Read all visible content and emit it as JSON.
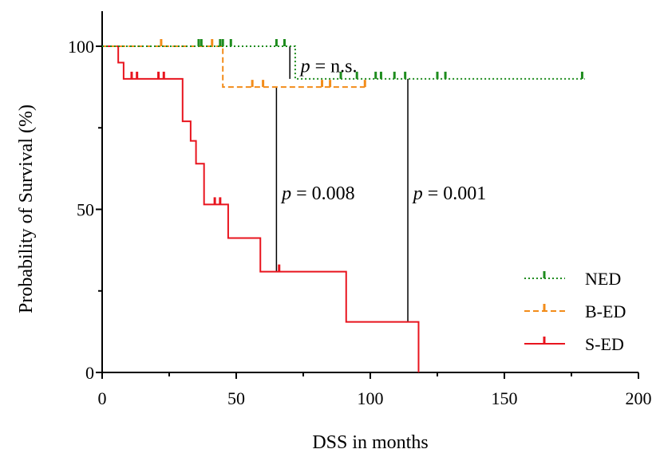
{
  "chart_data": {
    "type": "line",
    "subtype": "kaplan-meier step",
    "xlabel": "DSS in months",
    "ylabel": "Probability of Survival (%)",
    "xlim": [
      0,
      200
    ],
    "ylim": [
      0,
      100
    ],
    "xticks": [
      "0",
      "50",
      "100",
      "150",
      "200"
    ],
    "yticks": [
      "0",
      "50",
      "100"
    ],
    "grid": false,
    "legend_position": "bottom-right",
    "series": [
      {
        "name": "NED",
        "color": "#1e8c1e",
        "line_style": "dotted",
        "steps": [
          [
            0,
            100
          ],
          [
            72,
            100
          ],
          [
            72,
            90
          ],
          [
            180,
            90
          ]
        ],
        "censored": [
          [
            36,
            100
          ],
          [
            37,
            100
          ],
          [
            44,
            100
          ],
          [
            45,
            100
          ],
          [
            48,
            100
          ],
          [
            65,
            100
          ],
          [
            68,
            100
          ],
          [
            89,
            90
          ],
          [
            95,
            90
          ],
          [
            102,
            90
          ],
          [
            104,
            90
          ],
          [
            109,
            90
          ],
          [
            113,
            90
          ],
          [
            125,
            90
          ],
          [
            128,
            90
          ],
          [
            179,
            90
          ]
        ]
      },
      {
        "name": "B-ED",
        "color": "#f28c1a",
        "line_style": "dashed",
        "steps": [
          [
            0,
            100
          ],
          [
            45,
            100
          ],
          [
            45,
            87.5
          ],
          [
            98,
            87.5
          ]
        ],
        "censored": [
          [
            22,
            100
          ],
          [
            41,
            100
          ],
          [
            56,
            87.5
          ],
          [
            60,
            87.5
          ],
          [
            82,
            87.5
          ],
          [
            85,
            87.5
          ],
          [
            98,
            87.5
          ]
        ]
      },
      {
        "name": "S-ED",
        "color": "#e8141e",
        "line_style": "solid",
        "steps": [
          [
            0,
            100
          ],
          [
            6,
            100
          ],
          [
            6,
            95
          ],
          [
            8,
            95
          ],
          [
            8,
            90
          ],
          [
            30,
            90
          ],
          [
            30,
            77
          ],
          [
            33,
            77
          ],
          [
            33,
            71
          ],
          [
            35,
            71
          ],
          [
            35,
            64
          ],
          [
            38,
            64
          ],
          [
            38,
            51.5
          ],
          [
            47,
            51.5
          ],
          [
            47,
            41.2
          ],
          [
            59,
            41.2
          ],
          [
            59,
            30.9
          ],
          [
            91,
            30.9
          ],
          [
            91,
            15.5
          ],
          [
            118,
            15.5
          ],
          [
            118,
            0
          ]
        ],
        "censored": [
          [
            11,
            90
          ],
          [
            13,
            90
          ],
          [
            21,
            90
          ],
          [
            23,
            90
          ],
          [
            42,
            51.5
          ],
          [
            44,
            51.5
          ],
          [
            66,
            30.9
          ]
        ]
      }
    ],
    "annotations": [
      {
        "text_italic": "p",
        "text_rest": " = n.s.",
        "x": 74,
        "y": 94,
        "line": {
          "x": 70,
          "y1": 100,
          "y2": 90
        }
      },
      {
        "text_italic": "p",
        "text_rest": " = 0.008",
        "x": 67,
        "y": 55,
        "line": {
          "x": 65,
          "y1": 87.5,
          "y2": 30.9
        }
      },
      {
        "text_italic": "p",
        "text_rest": " = 0.001",
        "x": 116,
        "y": 55,
        "line": {
          "x": 114,
          "y1": 90,
          "y2": 15.5
        }
      }
    ]
  }
}
